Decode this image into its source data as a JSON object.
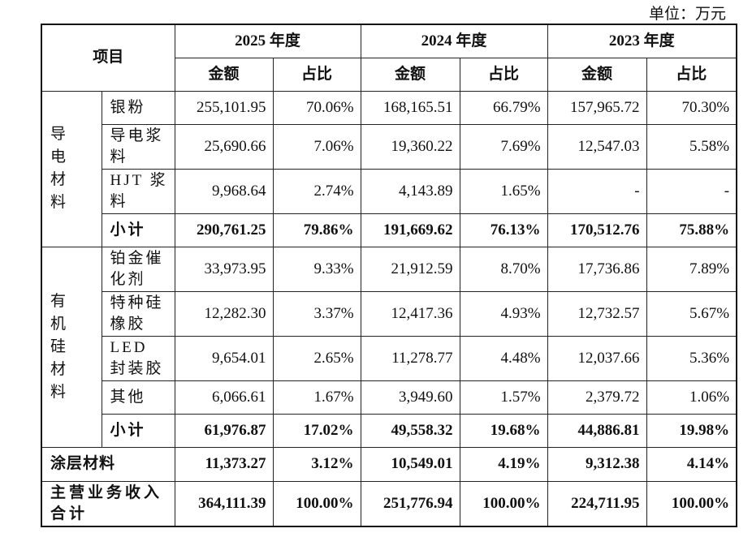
{
  "unit_label": "单位：万元",
  "header": {
    "item": "项目",
    "years": [
      "2025 年度",
      "2024 年度",
      "2023 年度"
    ],
    "amount": "金额",
    "ratio": "占比"
  },
  "groups": [
    {
      "category": "导电材料",
      "rows": [
        {
          "name": "银粉",
          "values": [
            "255,101.95",
            "70.06%",
            "168,165.51",
            "66.79%",
            "157,965.72",
            "70.30%"
          ]
        },
        {
          "name": "导电浆料",
          "values": [
            "25,690.66",
            "7.06%",
            "19,360.22",
            "7.69%",
            "12,547.03",
            "5.58%"
          ]
        },
        {
          "name": "HJT 浆料",
          "values": [
            "9,968.64",
            "2.74%",
            "4,143.89",
            "1.65%",
            "-",
            "-"
          ]
        },
        {
          "name": "小计",
          "values": [
            "290,761.25",
            "79.86%",
            "191,669.62",
            "76.13%",
            "170,512.76",
            "75.88%"
          ]
        }
      ]
    },
    {
      "category": "有机硅材料",
      "rows": [
        {
          "name": "铂金催化剂",
          "values": [
            "33,973.95",
            "9.33%",
            "21,912.59",
            "8.70%",
            "17,736.86",
            "7.89%"
          ]
        },
        {
          "name": "特种硅橡胶",
          "values": [
            "12,282.30",
            "3.37%",
            "12,417.36",
            "4.93%",
            "12,732.57",
            "5.67%"
          ]
        },
        {
          "name": "LED 封装胶",
          "values": [
            "9,654.01",
            "2.65%",
            "11,278.77",
            "4.48%",
            "12,037.66",
            "5.36%"
          ]
        },
        {
          "name": "其他",
          "values": [
            "6,066.61",
            "1.67%",
            "3,949.60",
            "1.57%",
            "2,379.72",
            "1.06%"
          ]
        },
        {
          "name": "小计",
          "values": [
            "61,976.87",
            "17.02%",
            "49,558.32",
            "19.68%",
            "44,886.81",
            "19.98%"
          ]
        }
      ]
    }
  ],
  "coating": {
    "name": "涂层材料",
    "values": [
      "11,373.27",
      "3.12%",
      "10,549.01",
      "4.19%",
      "9,312.38",
      "4.14%"
    ]
  },
  "total": {
    "name": "主营业务收入合计",
    "values": [
      "364,111.39",
      "100.00%",
      "251,776.94",
      "100.00%",
      "224,711.95",
      "100.00%"
    ]
  }
}
